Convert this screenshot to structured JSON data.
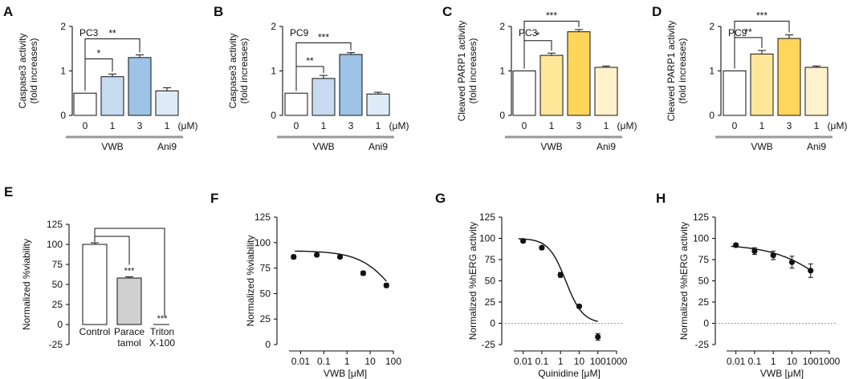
{
  "colors": {
    "white": "#ffffff",
    "blue_light": "#c6dbef",
    "blue_mid": "#9dc3e6",
    "blue_pale": "#deebf7",
    "yellow_light": "#ffe79a",
    "yellow_mid": "#ffd55a",
    "yellow_pale": "#fff2cc",
    "gray_bar": "#d0d0d0",
    "group_line": "#999999"
  },
  "chart_data": [
    {
      "id": "A",
      "type": "bar",
      "letter": "A",
      "cell": "PC3",
      "ylabel1": "Caspase3 activity",
      "ylabel2": "(fold increases)",
      "ylim": [
        0,
        2
      ],
      "ticks": [
        "0",
        "1",
        "2"
      ],
      "tick_values": [
        0,
        1,
        2
      ],
      "categories": [
        "0",
        "1",
        "3",
        "1"
      ],
      "unit": "(μM)",
      "values": [
        0.5,
        0.87,
        1.3,
        0.55
      ],
      "errors": [
        0,
        0.06,
        0.06,
        0.07
      ],
      "fills": [
        "white",
        "blue_light",
        "blue_mid",
        "blue_pale"
      ],
      "group1": "VWB",
      "group2": "Ani9",
      "brackets": [
        {
          "from": 0,
          "to": 1,
          "y": 1.27,
          "label": "*"
        },
        {
          "from": 0,
          "to": 2,
          "y": 1.72,
          "label": "**"
        }
      ]
    },
    {
      "id": "B",
      "type": "bar",
      "letter": "B",
      "cell": "PC9",
      "ylabel1": "Caspase3 activity",
      "ylabel2": "(fold increases)",
      "ylim": [
        0,
        2
      ],
      "ticks": [
        "0",
        "1",
        "2"
      ],
      "tick_values": [
        0,
        1,
        2
      ],
      "categories": [
        "0",
        "1",
        "3",
        "1"
      ],
      "unit": "(μM)",
      "values": [
        0.5,
        0.83,
        1.37,
        0.48
      ],
      "errors": [
        0,
        0.07,
        0.04,
        0.04
      ],
      "fills": [
        "white",
        "blue_light",
        "blue_mid",
        "blue_pale"
      ],
      "group1": "VWB",
      "group2": "Ani9",
      "brackets": [
        {
          "from": 0,
          "to": 1,
          "y": 1.1,
          "label": "**"
        },
        {
          "from": 0,
          "to": 2,
          "y": 1.63,
          "label": "***"
        }
      ]
    },
    {
      "id": "C",
      "type": "bar",
      "letter": "C",
      "cell": "PC3",
      "ylabel1": "Cleaved PARP1 activity",
      "ylabel2": "(fold increases)",
      "ylim": [
        0,
        2
      ],
      "ticks": [
        "0",
        "1",
        "2"
      ],
      "tick_values": [
        0,
        1,
        2
      ],
      "categories": [
        "0",
        "1",
        "3",
        "1"
      ],
      "unit": "(μM)",
      "values": [
        1.0,
        1.35,
        1.88,
        1.08
      ],
      "errors": [
        0,
        0.05,
        0.05,
        0.03
      ],
      "fills": [
        "white",
        "yellow_light",
        "yellow_mid",
        "yellow_pale"
      ],
      "group1": "VWB",
      "group2": "Ani9",
      "brackets": [
        {
          "from": 0,
          "to": 1,
          "y": 1.68,
          "label": "*"
        },
        {
          "from": 0,
          "to": 2,
          "y": 2.12,
          "label": "***"
        }
      ]
    },
    {
      "id": "D",
      "type": "bar",
      "letter": "D",
      "cell": "PC9",
      "ylabel1": "Cleaved PARP1 activity",
      "ylabel2": "(fold increases)",
      "ylim": [
        0,
        2
      ],
      "ticks": [
        "0",
        "1",
        "2"
      ],
      "tick_values": [
        0,
        1,
        2
      ],
      "categories": [
        "0",
        "1",
        "3",
        "1"
      ],
      "unit": "(μM)",
      "values": [
        1.0,
        1.38,
        1.73,
        1.08
      ],
      "errors": [
        0,
        0.08,
        0.08,
        0.03
      ],
      "fills": [
        "white",
        "yellow_light",
        "yellow_mid",
        "yellow_pale"
      ],
      "group1": "VWB",
      "group2": "Ani9",
      "brackets": [
        {
          "from": 0,
          "to": 1,
          "y": 1.75,
          "label": "**"
        },
        {
          "from": 0,
          "to": 2,
          "y": 2.12,
          "label": "***"
        }
      ]
    },
    {
      "id": "E",
      "type": "bar",
      "letter": "E",
      "ylabel": "Normalized %viability",
      "ylim": [
        -25,
        125
      ],
      "ticks": [
        "125",
        "100",
        "75",
        "50",
        "25",
        "0",
        "-25"
      ],
      "tick_values": [
        125,
        100,
        75,
        50,
        25,
        0,
        -25
      ],
      "categories": [
        [
          "Control"
        ],
        [
          "Parace",
          "tamol"
        ],
        [
          "Triton",
          "X-100"
        ]
      ],
      "values": [
        100,
        58,
        0
      ],
      "errors": [
        2,
        1.5,
        0
      ],
      "fills": [
        "white",
        "gray_bar",
        "white"
      ],
      "stars": [
        "",
        "***",
        "***"
      ],
      "brackets": [
        {
          "from": 0,
          "to": 1,
          "y": 110
        },
        {
          "from": 0,
          "to": 2,
          "y": 120
        }
      ]
    },
    {
      "id": "F",
      "type": "scatter",
      "letter": "F",
      "ylabel": "Normalized %viability",
      "xlabel": "VWB [μM]",
      "ylim": [
        0,
        125
      ],
      "xlim_log10": [
        -2.5,
        2
      ],
      "ticks": [
        "125",
        "100",
        "75",
        "50",
        "25",
        "0"
      ],
      "tick_values": [
        125,
        100,
        75,
        50,
        25,
        0
      ],
      "xticks": [
        "0.01",
        "0.1",
        "1",
        "10",
        "100"
      ],
      "xtick_log10": [
        -2,
        -1,
        0,
        1,
        2
      ],
      "x": [
        0.005,
        0.05,
        0.5,
        5,
        50
      ],
      "y": [
        86,
        88,
        86,
        70,
        58
      ],
      "yerr": [
        2,
        1.5,
        1.5,
        2,
        2
      ],
      "fit": {
        "top": 92,
        "bottom": 0,
        "ic50": 190,
        "hill": 0.55
      }
    },
    {
      "id": "G",
      "type": "scatter",
      "letter": "G",
      "ylabel": "Normalized %hERG activity",
      "xlabel": "Quinidine [μM]",
      "ylim": [
        -25,
        125
      ],
      "xlim_log10": [
        -2.5,
        3
      ],
      "ticks": [
        "125",
        "100",
        "75",
        "50",
        "25",
        "0",
        "-25"
      ],
      "tick_values": [
        125,
        100,
        75,
        50,
        25,
        0,
        -25
      ],
      "xticks": [
        "0.01",
        "0.1",
        "1",
        "10",
        "100",
        "1000"
      ],
      "xtick_log10": [
        -2,
        -1,
        0,
        1,
        2,
        3
      ],
      "x": [
        0.01,
        0.1,
        1,
        10,
        100
      ],
      "y": [
        97,
        89,
        57,
        20,
        -16
      ],
      "yerr": [
        2,
        2,
        3,
        2,
        4
      ],
      "fit": {
        "top": 100,
        "bottom": 0,
        "ic50": 1.9,
        "hill": 0.95,
        "x_end_log10": 2
      }
    },
    {
      "id": "H",
      "type": "scatter",
      "letter": "H",
      "ylabel": "Normalized %hERG activity",
      "xlabel": "VWB [μM]",
      "ylim": [
        -25,
        125
      ],
      "xlim_log10": [
        -2.5,
        3
      ],
      "ticks": [
        "125",
        "100",
        "75",
        "50",
        "25",
        "0",
        "-25"
      ],
      "tick_values": [
        125,
        100,
        75,
        50,
        25,
        0,
        -25
      ],
      "xticks": [
        "0.01",
        "0.1",
        "1",
        "10",
        "100",
        "1000"
      ],
      "xtick_log10": [
        -2,
        -1,
        0,
        1,
        2,
        3
      ],
      "x": [
        0.01,
        0.1,
        1,
        10,
        100
      ],
      "y": [
        92,
        85,
        80,
        72,
        62
      ],
      "yerr": [
        2,
        4,
        5,
        7,
        8
      ],
      "fit": {
        "top": 93,
        "bottom": 0,
        "ic50": 1100,
        "hill": 0.3
      }
    }
  ]
}
